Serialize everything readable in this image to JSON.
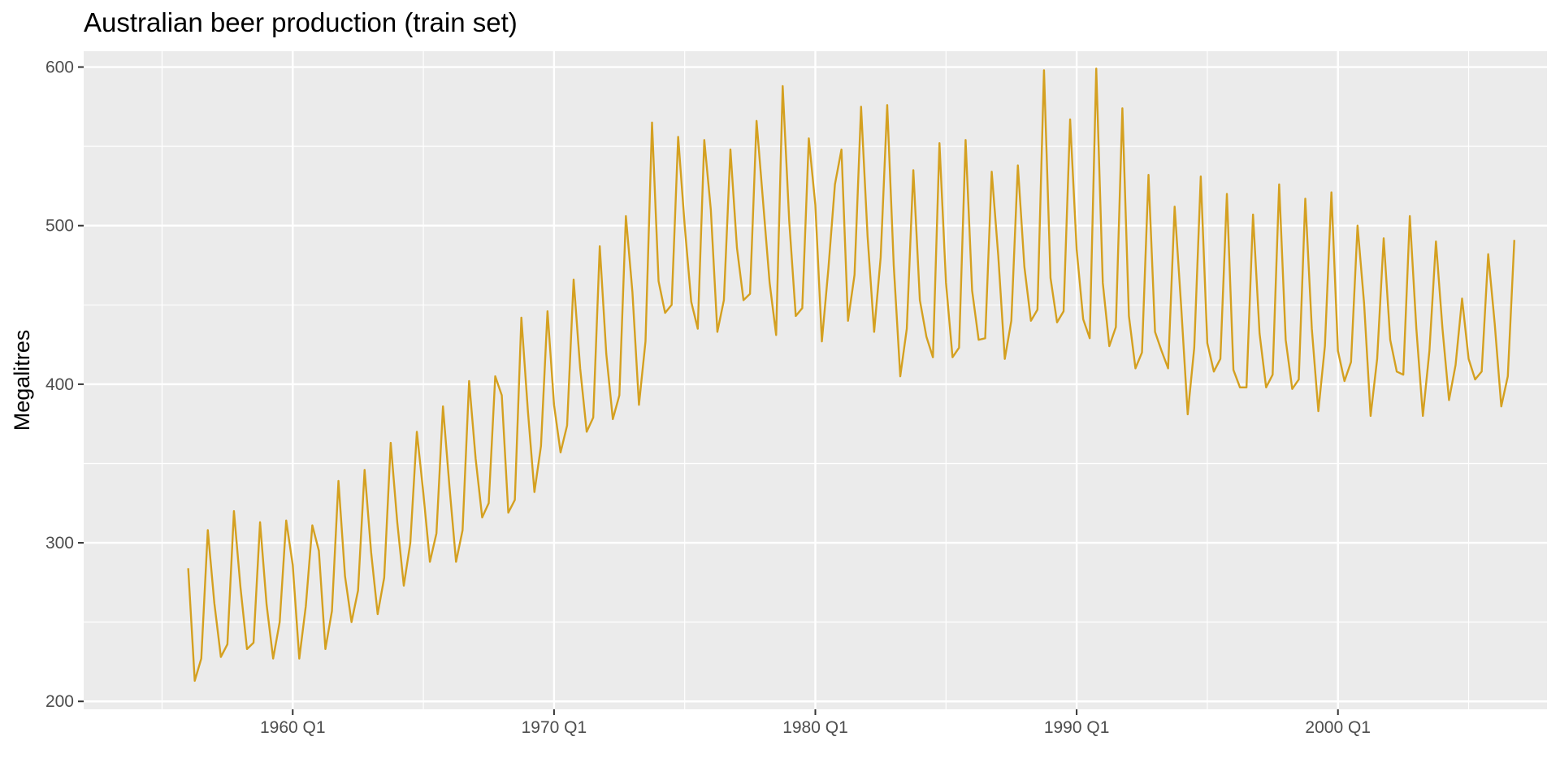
{
  "chart_data": {
    "type": "line",
    "title": "Australian beer production (train set)",
    "xlabel": "",
    "ylabel": "Megalitres",
    "x_start": "1956 Q1",
    "x_end": "2006 Q4",
    "xlim": [
      "1952 Q1",
      "2008 Q1"
    ],
    "ylim": [
      195,
      610
    ],
    "x_ticks": [
      {
        "label": "1960 Q1",
        "value": "1960 Q1"
      },
      {
        "label": "1970 Q1",
        "value": "1970 Q1"
      },
      {
        "label": "1980 Q1",
        "value": "1980 Q1"
      },
      {
        "label": "1990 Q1",
        "value": "1990 Q1"
      },
      {
        "label": "2000 Q1",
        "value": "2000 Q1"
      }
    ],
    "y_ticks": [
      200,
      300,
      400,
      500,
      600
    ],
    "grid": true,
    "colors": {
      "line": "#D4A020",
      "panel": "#EBEBEB",
      "grid": "#FFFFFF"
    },
    "series": [
      {
        "values": [
          284,
          213,
          227,
          308,
          262,
          228,
          236,
          320,
          272,
          233,
          237,
          313,
          261,
          227,
          250,
          314,
          286,
          227,
          260,
          311,
          295,
          233,
          257,
          339,
          279,
          250,
          270,
          346,
          294,
          255,
          278,
          363,
          313,
          273,
          300,
          370,
          331,
          288,
          306,
          386,
          335,
          288,
          308,
          402,
          353,
          316,
          325,
          405,
          393,
          319,
          327,
          442,
          383,
          332,
          361,
          446,
          387,
          357,
          374,
          466,
          410,
          370,
          379,
          487,
          419,
          378,
          393,
          506,
          458,
          387,
          427,
          565,
          465,
          445,
          450,
          556,
          500,
          452,
          435,
          554,
          510,
          433,
          453,
          548,
          486,
          453,
          457,
          566,
          515,
          464,
          431,
          588,
          503,
          443,
          448,
          555,
          513,
          427,
          473,
          526,
          548,
          440,
          469,
          575,
          493,
          433,
          480,
          576,
          475,
          405,
          435,
          535,
          453,
          430,
          417,
          552,
          464,
          417,
          423,
          554,
          459,
          428,
          429,
          534,
          481,
          416,
          440,
          538,
          474,
          440,
          447,
          598,
          467,
          439,
          446,
          567,
          485,
          441,
          429,
          599,
          464,
          424,
          436,
          574,
          443,
          410,
          420,
          532,
          433,
          421,
          410,
          512,
          449,
          381,
          423,
          531,
          426,
          408,
          416,
          520,
          409,
          398,
          398,
          507,
          432,
          398,
          406,
          526,
          428,
          397,
          403,
          517,
          435,
          383,
          424,
          521,
          421,
          402,
          414,
          500,
          451,
          380,
          416,
          492,
          428,
          408,
          406,
          506,
          435,
          380,
          421,
          490,
          435,
          390,
          412,
          454,
          416,
          403,
          408,
          482,
          438,
          386,
          405,
          491
        ]
      }
    ]
  }
}
